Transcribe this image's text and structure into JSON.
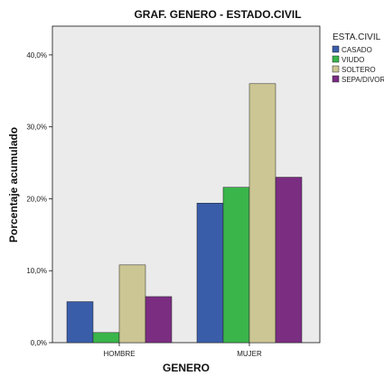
{
  "chart_data": {
    "type": "bar",
    "title": "GRAF. GENERO - ESTADO.CIVIL",
    "xlabel": "GENERO",
    "ylabel": "Porcentaje acumulado",
    "categories": [
      "HOMBRE",
      "MUJER"
    ],
    "ylim": [
      0,
      44
    ],
    "yticks": [
      {
        "value": 0,
        "label": "0,0%"
      },
      {
        "value": 10,
        "label": "10,0%"
      },
      {
        "value": 20,
        "label": "20,0%"
      },
      {
        "value": 30,
        "label": "30,0%"
      },
      {
        "value": 40,
        "label": "40,0%"
      }
    ],
    "legend": {
      "title": "ESTA.CIVIL",
      "position": "right"
    },
    "grid": false,
    "series": [
      {
        "name": "CASADO",
        "color": "#3a5daa",
        "values": [
          5.7,
          19.4
        ]
      },
      {
        "name": "VIUDO",
        "color": "#39b54a",
        "values": [
          1.4,
          21.6
        ]
      },
      {
        "name": "SOLTERO",
        "color": "#cbc693",
        "values": [
          10.8,
          36.0
        ]
      },
      {
        "name": "SEPA/DIVOR",
        "color": "#7b2d82",
        "values": [
          6.4,
          23.0
        ]
      }
    ],
    "plot_background": "#ebebeb"
  }
}
